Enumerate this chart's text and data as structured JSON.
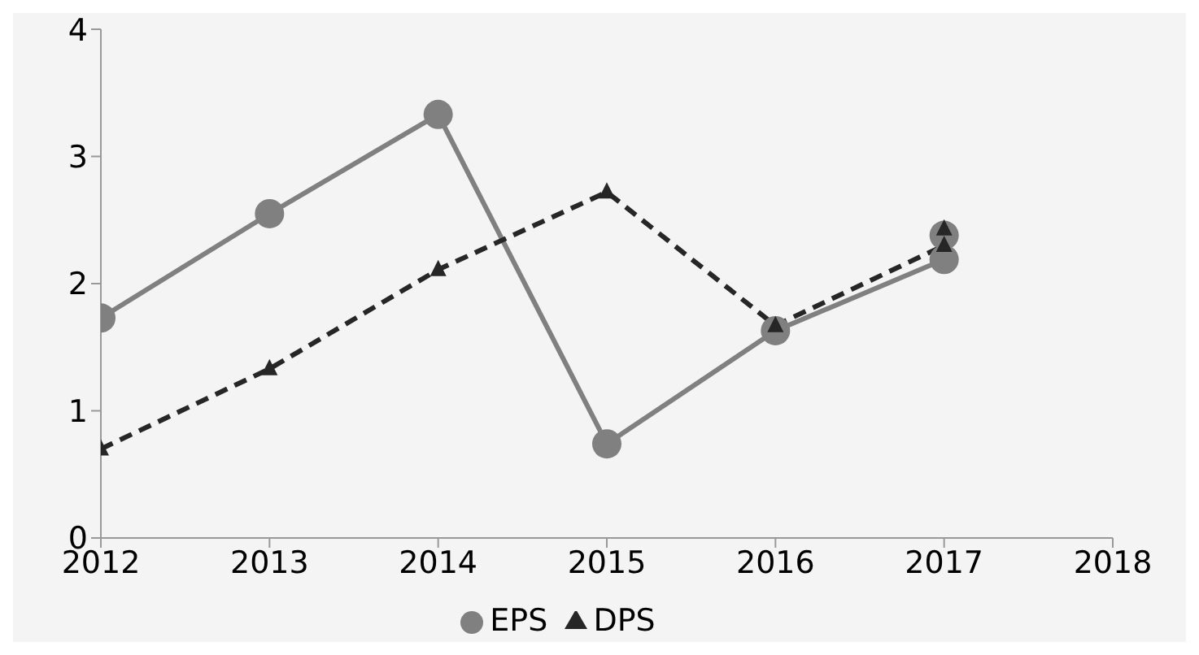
{
  "chart_data": {
    "type": "line",
    "xlim": [
      2012,
      2018
    ],
    "xticks": [
      2012,
      2013,
      2014,
      2015,
      2016,
      2017,
      2018
    ],
    "ylim": [
      0,
      4
    ],
    "yticks": [
      0,
      1,
      2,
      3,
      4
    ],
    "grid": false,
    "legend": "bottom",
    "series": [
      {
        "name": "EPS",
        "color": "#808080",
        "marker": "circle",
        "line_style": "solid",
        "x": [
          2012,
          2013,
          2014,
          2015,
          2016,
          2017,
          2017
        ],
        "values": [
          1.73,
          2.55,
          3.33,
          0.74,
          1.63,
          2.19,
          2.38
        ]
      },
      {
        "name": "DPS",
        "color": "#262626",
        "marker": "triangle",
        "line_style": "dashed",
        "x": [
          2012,
          2013,
          2014,
          2015,
          2016,
          2017,
          2017
        ],
        "values": [
          0.7,
          1.33,
          2.11,
          2.72,
          1.67,
          2.3,
          2.43
        ]
      }
    ]
  }
}
